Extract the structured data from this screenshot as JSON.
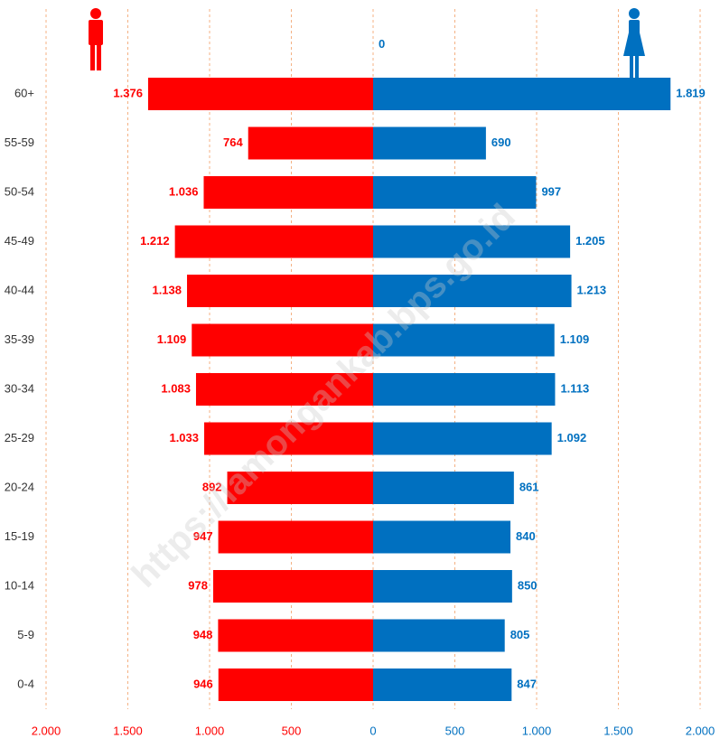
{
  "chart_data": {
    "type": "pyramid",
    "categories": [
      null,
      "60+",
      "55-59",
      "50-54",
      "45-49",
      "40-44",
      "35-39",
      "30-34",
      "25-29",
      "20-24",
      "15-19",
      "10-14",
      "5-9",
      "0-4"
    ],
    "series": [
      {
        "color": "#ff0000",
        "side": "left",
        "values": [
          null,
          1376,
          764,
          1036,
          1212,
          1138,
          1109,
          1083,
          1033,
          892,
          947,
          978,
          948,
          946
        ],
        "value_labels": [
          null,
          "1.376",
          "764",
          "1.036",
          "1.212",
          "1.138",
          "1.109",
          "1.083",
          "1.033",
          "892",
          "947",
          "978",
          "948",
          "946"
        ]
      },
      {
        "color": "#0070c0",
        "side": "right",
        "values": [
          0,
          1819,
          690,
          997,
          1205,
          1213,
          1109,
          1113,
          1092,
          861,
          840,
          850,
          805,
          847
        ],
        "value_labels": [
          "0",
          "1.819",
          "690",
          "997",
          "1.205",
          "1.213",
          "1.109",
          "1.113",
          "1.092",
          "861",
          "840",
          "850",
          "805",
          "847"
        ]
      }
    ],
    "xlim": [
      -2000,
      2000
    ],
    "xticks": [
      {
        "value": -2000,
        "label": "2.000"
      },
      {
        "value": -1500,
        "label": "1.500"
      },
      {
        "value": -1000,
        "label": "1.000"
      },
      {
        "value": -500,
        "label": "500"
      },
      0,
      500,
      {
        "value": 1000,
        "label": "1.000"
      },
      {
        "value": 1500,
        "label": "1.500"
      },
      {
        "value": 2000,
        "label": "2.000"
      }
    ],
    "grid": true,
    "watermark": "https://lamongankab.bps.go.id"
  }
}
